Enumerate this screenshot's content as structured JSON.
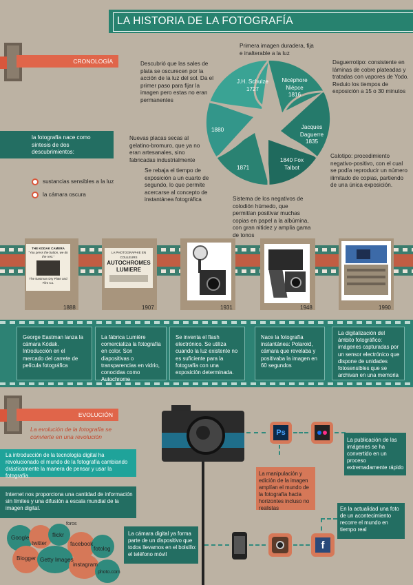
{
  "title": "LA HISTORIA DE LA FOTOGRAFÍA",
  "cronologia": {
    "label": "CRONOLOGÍA",
    "intro": "la fotografía nace como síntesis de dos descubrimientos:",
    "bullets": [
      "sustancias sensibles a la luz",
      "la cámara oscura"
    ]
  },
  "aperture": {
    "years": [
      {
        "name": "J.H. Schulze",
        "year": "1727"
      },
      {
        "name": "Nicéphore Niépce",
        "year": "1816"
      },
      {
        "name": "Jacques Daguerre",
        "year": "1835"
      },
      {
        "name": "1840 Fox Talbot",
        "year": ""
      },
      {
        "name": "1871",
        "year": ""
      },
      {
        "name": "1880",
        "year": ""
      }
    ],
    "notes": {
      "schulze": "Descubrió que las sales de plata se oscurecen por la acción de la luz del sol. Da el primer paso para fijar la imagen pero estas no eran permanentes",
      "niepce": "Primera imagen duradera, fija e inalterable a la luz",
      "daguerre": "Daguerrotipo: consistente en láminas de cobre plateadas y tratadas con vapores de Yodo. Reduio los tiempos de exposición a 15 o 30 minutos",
      "talbot": "Calotipo: procedimiento negativo-positivo, con el cual se podía reproducir un número ilimitado de copias, partiendo de una única exposición.",
      "y1871": "Sistema de los negativos de colodión húmedo, que permitían positivar muchas copias en papel a la albúmina, con gran nitidez y amplia gama de tonos",
      "y1880a": "Nuevas placas secas al gelatino-bromuro, que ya no eran artesanales, sino fabricadas industrialmente",
      "y1880b": "Se rebaja el tiempo de exposición a un cuarto de segundo, lo que permite acercarse al concepto de instantánea fotográfica"
    }
  },
  "timeline": [
    {
      "year": "1888",
      "text": "George Eastman lanza la cámara Kódak. Introducción en el mercado del carrete de película fotográfica"
    },
    {
      "year": "1907",
      "text": "La fábrica Lumière comercializa la fotografía en color. Son diapositivas o transparencias en vidrio, conocidas como Autochrome"
    },
    {
      "year": "1931",
      "text": "Se inventa el flash electrónico. Se utiliza cuando la luz existente no es suficiente para la fotografía con una exposición determinada."
    },
    {
      "year": "1948",
      "text": "Nace la fotografía instantánea: Polaroid, cámara que revelaba y positivaba la imagen en 60 segundos"
    },
    {
      "year": "1990",
      "text": "La digitalización del ámbito fotográfico: imágenes capturadas por un sensor electrónico que dispone de unidades fotosensibles que se archivan en una memoria"
    }
  ],
  "posters": {
    "kodak": [
      "THE KODAK CAMERA",
      "\"You press the button, we do the rest.\"",
      "The Eastman Dry Plate and Film Co."
    ],
    "lumiere": [
      "LA PHOTOGRAPHIE EN COULEURS",
      "AUTOCHROMES",
      "LUMIERE"
    ]
  },
  "evolucion": {
    "label": "EVOLUCIÓN",
    "subtitle": "La evolución de la fotografía se convierte en una revolución",
    "p1": "La introducción de la tecnología digital ha revolucionado el mundo de la fotografía cambiando drásticamente la manera de pensar y usar la fotografía.",
    "p2": "Internet nos proporciona una cantidad de información sin límites y una difusión a escala mundial de la imagen digital.",
    "camera": "La cámara digital ya forma parte de un dispositivo que todos llevamos en el bolsillo: el teléfono móvil",
    "edit": "La manipulación y edición de la imagen amplían el mundo de la fotografía hacia horizontes incluso no realistas",
    "publish": "La publicación de las imágenes se ha convertido en un proceso extremadamente rápido",
    "now": "En la actualidad una foto de un acontecimiento recorre el mundo en tiempo real",
    "ps": "Ps",
    "fb": "f",
    "bubbles": [
      "foros",
      "Google",
      "twitter",
      "flickr",
      "facebook",
      "fotolog",
      "Blogger",
      "Getty Images",
      "instagram",
      "photo.com"
    ]
  },
  "colors": {
    "teal": "#27826f",
    "dark_teal": "#236e62",
    "orange": "#e0654a",
    "bg": "#bcb2a3",
    "film": "#3b7d6e"
  }
}
